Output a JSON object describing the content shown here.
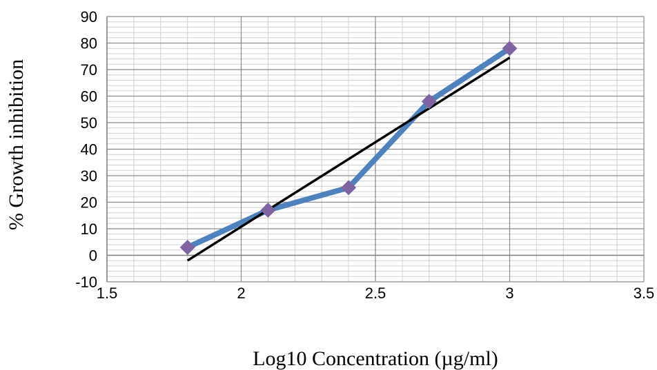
{
  "chart_data": {
    "type": "scatter",
    "title": "",
    "xlabel": "Log10 Concentration (µg/ml)",
    "ylabel": "% Growth inhibition",
    "xlim": [
      1.5,
      3.5
    ],
    "ylim": [
      -10,
      90
    ],
    "x_ticks": [
      "1.5",
      "2",
      "2.5",
      "3",
      "3.5"
    ],
    "y_ticks": [
      "-10",
      "0",
      "10",
      "20",
      "30",
      "40",
      "50",
      "60",
      "70",
      "80",
      "90"
    ],
    "grid": true,
    "legend": "none",
    "series": [
      {
        "x": [
          1.8,
          2.1,
          2.4,
          2.7,
          3.0
        ],
        "y": [
          3,
          17,
          25.5,
          58,
          78
        ],
        "color": "#4f81bd",
        "marker_color": "#8064a2",
        "marker": "diamond"
      }
    ],
    "trendline": {
      "x": [
        1.8,
        3.0
      ],
      "y": [
        -2,
        74.5
      ],
      "color": "#000000"
    }
  }
}
